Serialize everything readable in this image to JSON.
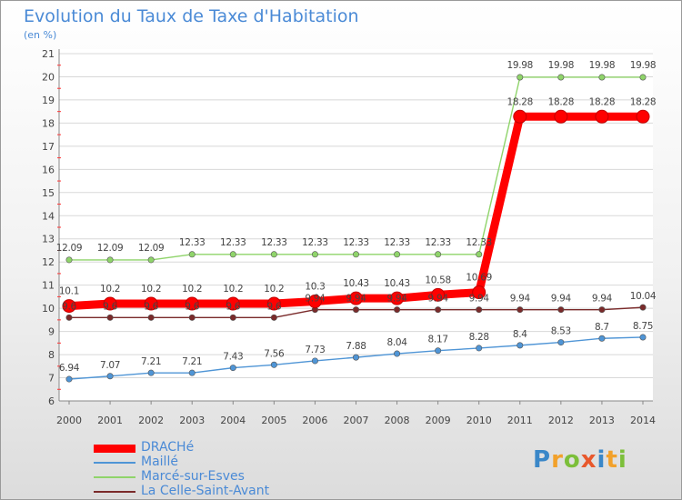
{
  "chart_data": {
    "type": "line",
    "title": "Evolution du Taux de Taxe d'Habitation",
    "ylabel": "(en %)",
    "ylim": [
      6,
      21
    ],
    "yticks": [
      "6",
      "7",
      "8",
      "9",
      "10",
      "11",
      "12",
      "13",
      "14",
      "15",
      "16",
      "17",
      "18",
      "19",
      "20",
      "21"
    ],
    "categories": [
      "2000",
      "2001",
      "2002",
      "2003",
      "2004",
      "2005",
      "2006",
      "2007",
      "2008",
      "2009",
      "2010",
      "2011",
      "2012",
      "2013",
      "2014"
    ],
    "series": [
      {
        "name": "DRACHé",
        "color": "#ff0000",
        "values": [
          10.1,
          10.2,
          10.2,
          10.2,
          10.2,
          10.2,
          10.3,
          10.43,
          10.43,
          10.58,
          10.69,
          18.28,
          18.28,
          18.28,
          18.28
        ],
        "labels": [
          "10.1",
          "10.2",
          "10.2",
          "10.2",
          "10.2",
          "10.2",
          "10.3",
          "10.43",
          "10.43",
          "10.58",
          "10.69",
          "18.28",
          "18.28",
          "18.28",
          "18.28"
        ]
      },
      {
        "name": "Maillé",
        "color": "#4f95d6",
        "values": [
          6.94,
          7.07,
          7.21,
          7.21,
          7.43,
          7.56,
          7.73,
          7.88,
          8.04,
          8.17,
          8.28,
          8.4,
          8.53,
          8.7,
          8.75
        ],
        "labels": [
          "6.94",
          "7.07",
          "7.21",
          "7.21",
          "7.43",
          "7.56",
          "7.73",
          "7.88",
          "8.04",
          "8.17",
          "8.28",
          "8.4",
          "8.53",
          "8.7",
          "8.75"
        ]
      },
      {
        "name": "Marcé-sur-Esves",
        "color": "#8fd46a",
        "values": [
          12.09,
          12.09,
          12.09,
          12.33,
          12.33,
          12.33,
          12.33,
          12.33,
          12.33,
          12.33,
          12.33,
          19.98,
          19.98,
          19.98,
          19.98
        ],
        "labels": [
          "12.09",
          "12.09",
          "12.09",
          "12.33",
          "12.33",
          "12.33",
          "12.33",
          "12.33",
          "12.33",
          "12.33",
          "12.33",
          "19.98",
          "19.98",
          "19.98",
          "19.98"
        ]
      },
      {
        "name": "La Celle-Saint-Avant",
        "color": "#7a2a2a",
        "values": [
          9.6,
          9.6,
          9.6,
          9.6,
          9.6,
          9.6,
          9.94,
          9.94,
          9.94,
          9.94,
          9.94,
          9.94,
          9.94,
          9.94,
          10.04
        ],
        "labels": [
          "9.6",
          "9.6",
          "9.6",
          "9.6",
          "9.6",
          "9.6",
          "9.94",
          "9.94",
          "9.94",
          "9.94",
          "9.94",
          "9.94",
          "9.94",
          "9.94",
          "10.04"
        ]
      }
    ]
  },
  "branding": {
    "logo_text": "Proxiti"
  }
}
